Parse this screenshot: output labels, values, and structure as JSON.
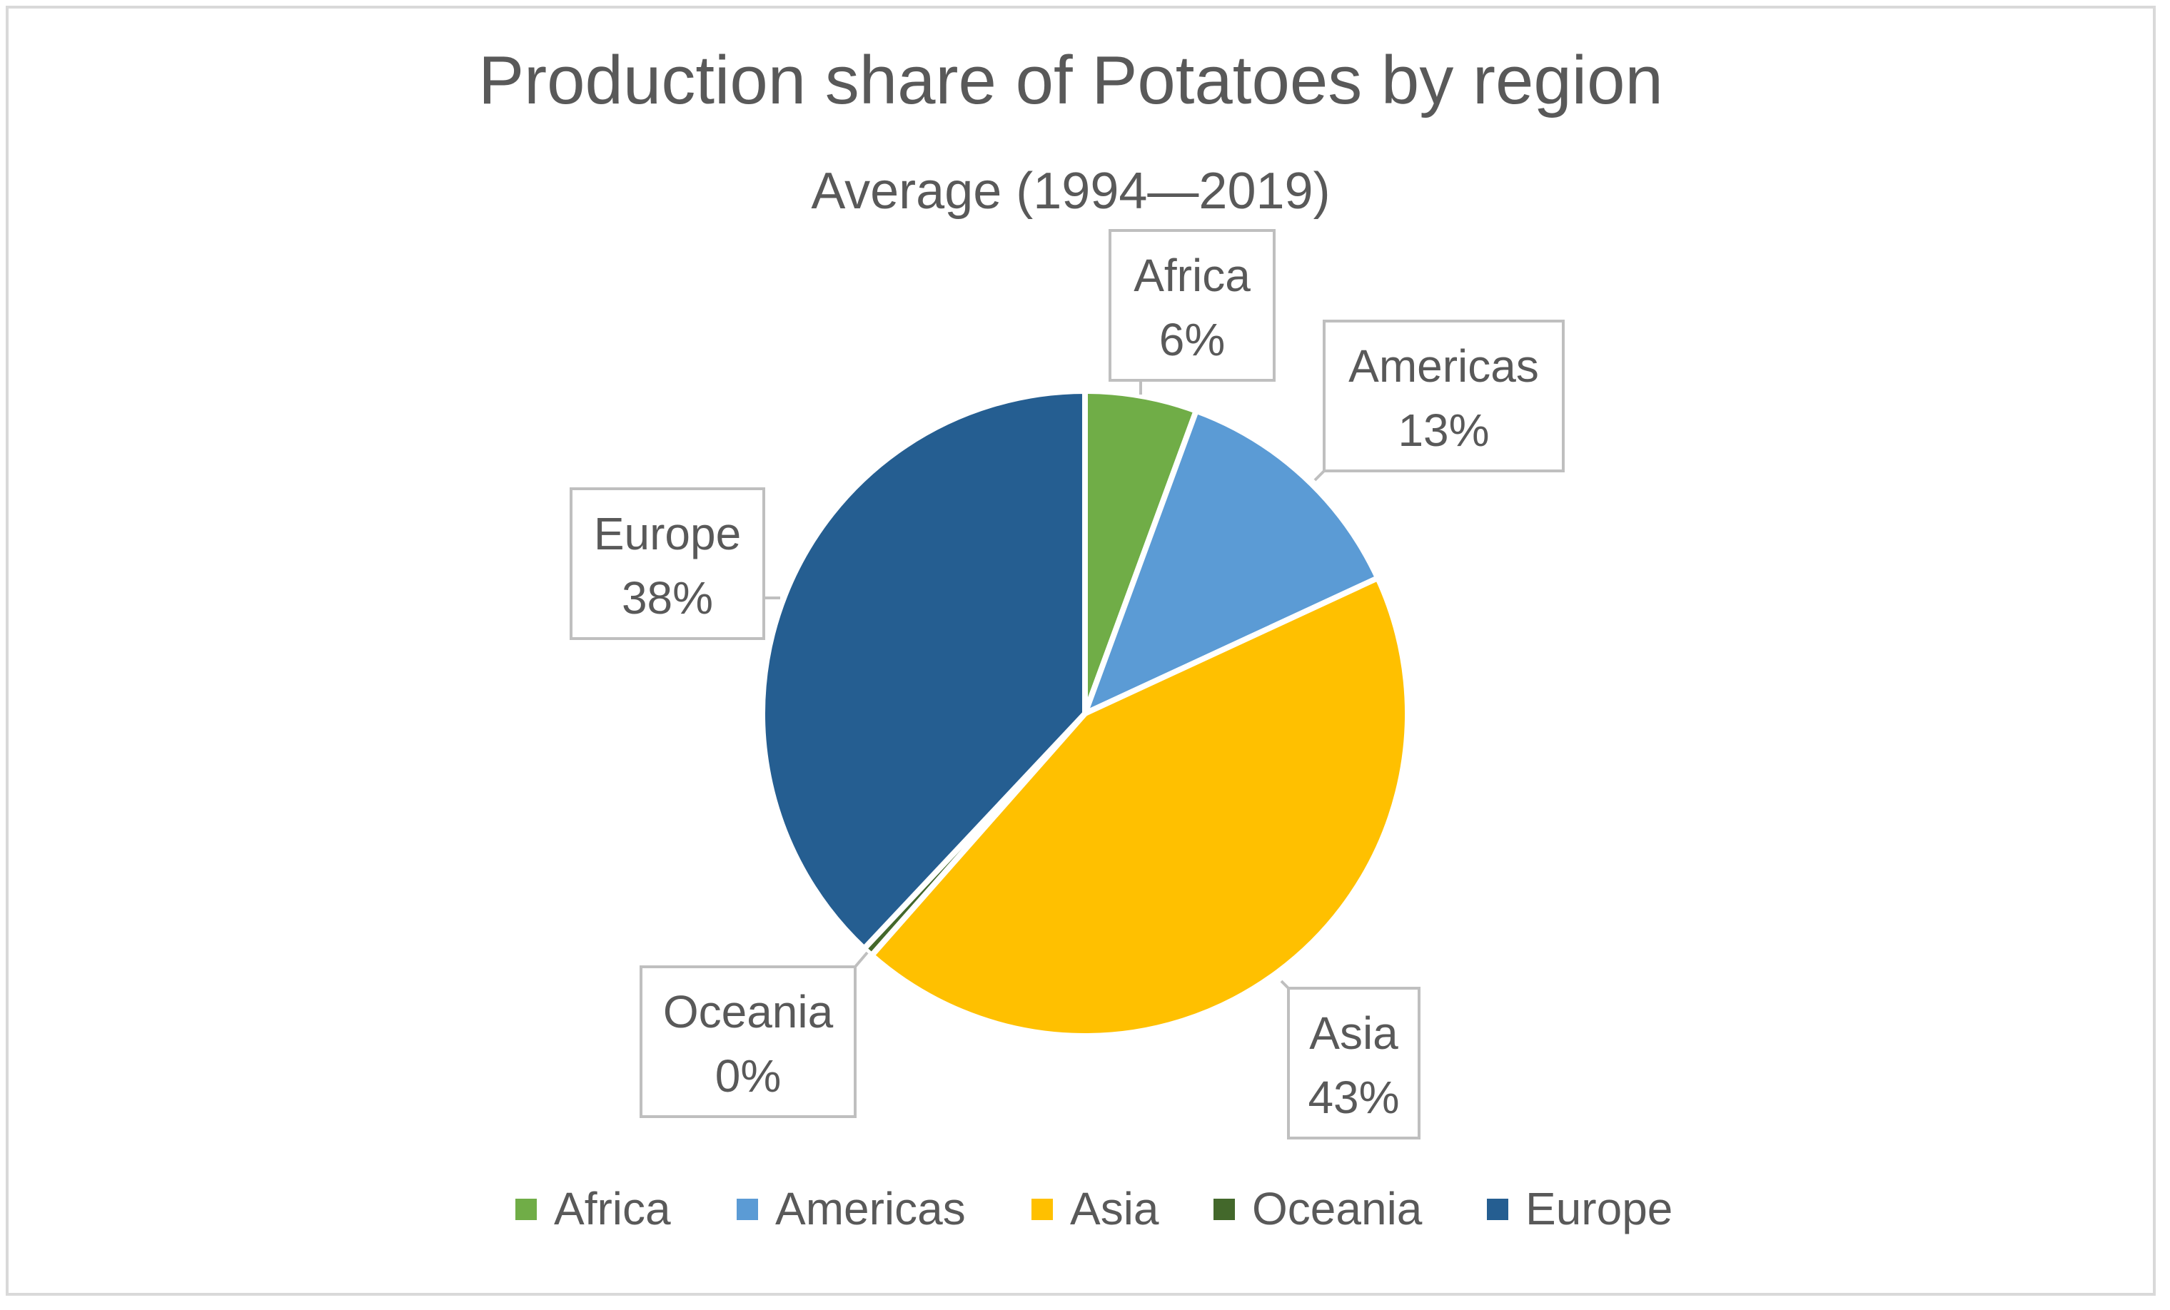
{
  "chart_data": {
    "type": "pie",
    "title": "Production share of Potatoes by region",
    "subtitle": "Average (1994—2019)",
    "categories": [
      "Africa",
      "Americas",
      "Asia",
      "Oceania",
      "Europe"
    ],
    "values": [
      5.6,
      12.5,
      43.4,
      0.5,
      38.0
    ],
    "data_labels": [
      "6%",
      "13%",
      "43%",
      "0%",
      "38%"
    ],
    "colors": [
      "#70ad47",
      "#5b9bd5",
      "#ffc000",
      "#43682b",
      "#255e91"
    ],
    "legend": {
      "position": "bottom",
      "entries": [
        "Africa",
        "Americas",
        "Asia",
        "Oceania",
        "Europe"
      ]
    }
  }
}
